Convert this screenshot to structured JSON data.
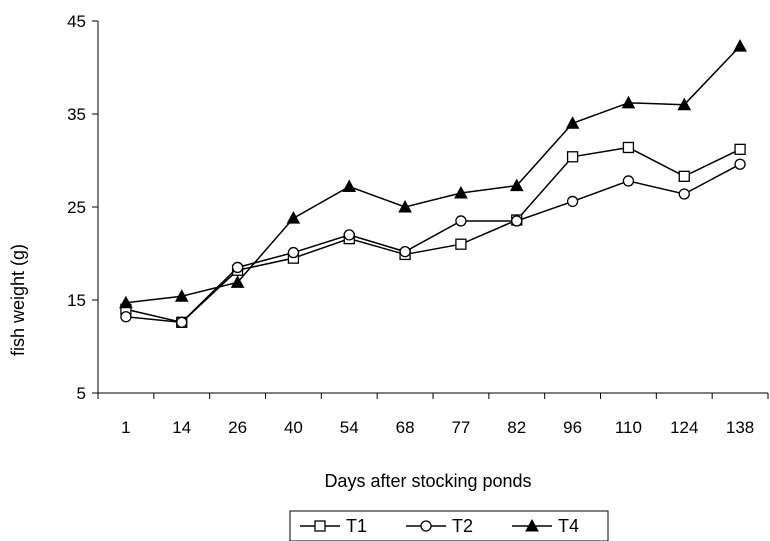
{
  "chart_data": {
    "type": "line",
    "title": "",
    "xlabel": "Days after stocking ponds",
    "ylabel": "fish weight (g)",
    "categories": [
      "1",
      "14",
      "26",
      "40",
      "54",
      "68",
      "77",
      "82",
      "96",
      "110",
      "124",
      "138"
    ],
    "ylim": [
      5,
      45
    ],
    "yticks": [
      "5",
      "15",
      "25",
      "35",
      "45"
    ],
    "grid": false,
    "legend_position": "bottom-center",
    "series": [
      {
        "name": "T1",
        "marker": "square-open",
        "values": [
          14.0,
          12.6,
          18.2,
          19.5,
          21.6,
          19.9,
          21.0,
          23.6,
          30.4,
          31.4,
          28.3,
          31.2
        ]
      },
      {
        "name": "T2",
        "marker": "circle-open",
        "values": [
          13.2,
          12.6,
          18.5,
          20.1,
          22.0,
          20.2,
          23.5,
          23.5,
          25.6,
          27.8,
          26.4,
          29.6
        ]
      },
      {
        "name": "T4",
        "marker": "triangle-filled",
        "values": [
          14.7,
          15.4,
          16.9,
          23.8,
          27.2,
          25.0,
          26.5,
          27.3,
          34.0,
          36.2,
          36.0,
          42.3
        ]
      }
    ],
    "colors": {
      "line": "#000000",
      "marker_fill_open": "#ffffff",
      "marker_fill_solid": "#000000"
    }
  }
}
